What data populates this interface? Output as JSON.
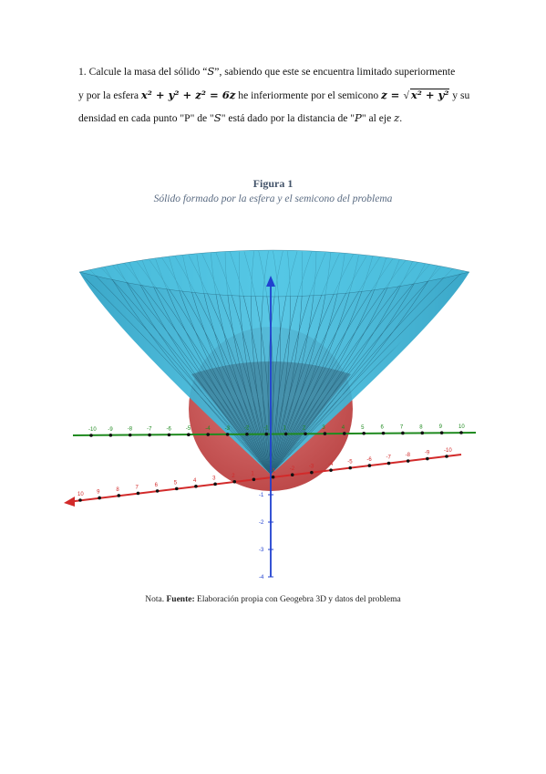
{
  "problem": {
    "line1_a": "1. Calcule la masa del sólido “",
    "S": "S",
    "line1_b": "”, sabiendo que este se encuentra limitado superiormente",
    "line2_a": "y por la esfera ",
    "sphere_eq": "x² + y² + z² = 6z",
    "line2_b": " he inferiormente por el semicono ",
    "cone_lhs": "z = ",
    "cone_rad": "x² + y²",
    "line2_c": " y su",
    "line3_a": "densidad en cada punto \"P\" de \"",
    "line3_S": "S",
    "line3_b": "\" está dado por la distancia de \"",
    "line3_P": "P",
    "line3_c": "\" al eje ",
    "line3_z": "z",
    "line3_d": "."
  },
  "figure": {
    "label": "Figura 1",
    "caption": "Sólido formado por la esfera y el semicono del problema",
    "colors": {
      "cone": "#3ab4d8",
      "sphere": "#c94a4a",
      "x_axis": "#d22a2a",
      "y_axis": "#1f8a1f",
      "z_axis": "#2040d0"
    },
    "ticks": {
      "green_axis": [
        "-10",
        "-9",
        "-8",
        "-7",
        "-6",
        "-5",
        "-4",
        "-3",
        "-2",
        "-1",
        "1",
        "2",
        "3",
        "4",
        "5",
        "6",
        "7",
        "8",
        "9",
        "10"
      ],
      "red_axis": [
        "10",
        "9",
        "8",
        "7",
        "6",
        "5",
        "4",
        "3",
        "2",
        "1",
        "-1",
        "-2",
        "-3",
        "-4",
        "-5",
        "-6",
        "-7",
        "-8",
        "-9",
        "-10"
      ],
      "z_axis": [
        "-1",
        "-2",
        "-3",
        "-4"
      ]
    }
  },
  "note": {
    "prefix": "Nota. ",
    "bold": "Fuente:",
    "text": " Elaboración propia con Geogebra 3D y datos del problema"
  }
}
